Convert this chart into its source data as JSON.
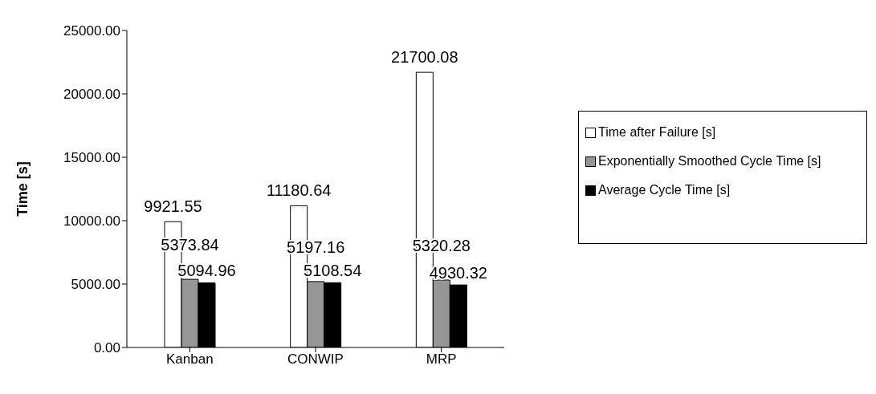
{
  "chart_data": {
    "type": "bar",
    "ylabel": "Time [s]",
    "categories": [
      "Kanban",
      "CONWIP",
      "MRP"
    ],
    "series": [
      {
        "name": "Time after Failure [s]",
        "color": "#ffffff",
        "values": [
          9921.55,
          11180.64,
          21700.08
        ]
      },
      {
        "name": "Exponentially Smoothed Cycle Time [s]",
        "color": "#969696",
        "values": [
          5373.84,
          5197.16,
          5320.28
        ]
      },
      {
        "name": "Average Cycle Time [s]",
        "color": "#000000",
        "values": [
          5094.96,
          5108.54,
          4930.32
        ]
      }
    ],
    "ylim": [
      0,
      25000
    ],
    "yticks": [
      {
        "value": 0,
        "label": "0.00"
      },
      {
        "value": 5000,
        "label": "5000.00"
      },
      {
        "value": 10000,
        "label": "10000.00"
      },
      {
        "value": 15000,
        "label": "15000.00"
      },
      {
        "value": 20000,
        "label": "20000.00"
      },
      {
        "value": 25000,
        "label": "25000.00"
      }
    ],
    "data_labels": true,
    "legend": "right",
    "grid": false
  }
}
